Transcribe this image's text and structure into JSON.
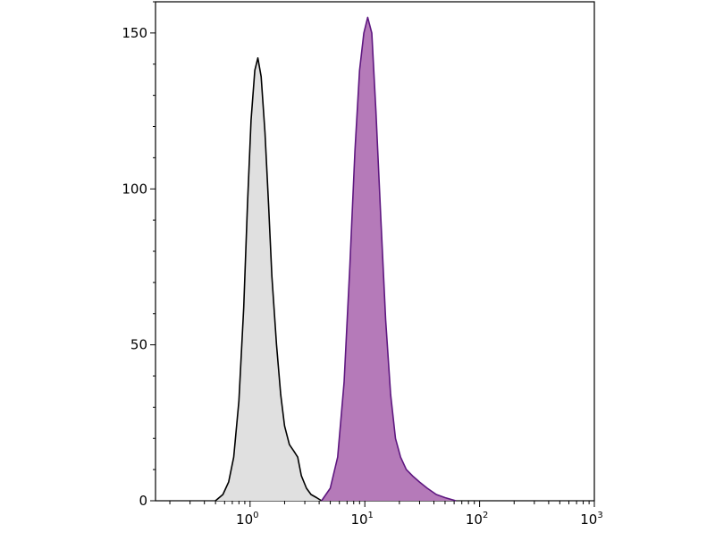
{
  "chart_data": {
    "type": "area",
    "title": "",
    "xlabel": "",
    "ylabel": "",
    "x_scale": "log",
    "xlim": [
      0.15,
      1000
    ],
    "ylim": [
      0,
      160
    ],
    "grid": false,
    "y_ticks": [
      {
        "value": 0,
        "label": "0"
      },
      {
        "value": 50,
        "label": "50"
      },
      {
        "value": 100,
        "label": "100"
      },
      {
        "value": 150,
        "label": "150"
      }
    ],
    "x_ticks": [
      {
        "value": 1,
        "base": "10",
        "exp": "0"
      },
      {
        "value": 10,
        "base": "10",
        "exp": "1"
      },
      {
        "value": 100,
        "base": "10",
        "exp": "2"
      },
      {
        "value": 1000,
        "base": "10",
        "exp": "3"
      }
    ],
    "series": [
      {
        "fill": "#e0e0e0",
        "stroke": "#000000",
        "points": [
          [
            0.5,
            0
          ],
          [
            0.58,
            2
          ],
          [
            0.65,
            6
          ],
          [
            0.72,
            14
          ],
          [
            0.8,
            32
          ],
          [
            0.88,
            62
          ],
          [
            0.95,
            95
          ],
          [
            1.02,
            122
          ],
          [
            1.1,
            138
          ],
          [
            1.17,
            142
          ],
          [
            1.25,
            136
          ],
          [
            1.35,
            118
          ],
          [
            1.45,
            95
          ],
          [
            1.55,
            72
          ],
          [
            1.7,
            50
          ],
          [
            1.85,
            34
          ],
          [
            2.0,
            24
          ],
          [
            2.2,
            18
          ],
          [
            2.4,
            16
          ],
          [
            2.6,
            14
          ],
          [
            2.8,
            8
          ],
          [
            3.1,
            4
          ],
          [
            3.4,
            2
          ],
          [
            3.8,
            1
          ],
          [
            4.2,
            0
          ]
        ]
      },
      {
        "fill": "#b57ab9",
        "stroke": "#5e1780",
        "points": [
          [
            4.2,
            0
          ],
          [
            5.0,
            4
          ],
          [
            5.8,
            14
          ],
          [
            6.6,
            38
          ],
          [
            7.4,
            75
          ],
          [
            8.2,
            112
          ],
          [
            9.0,
            138
          ],
          [
            9.8,
            150
          ],
          [
            10.6,
            155
          ],
          [
            11.5,
            150
          ],
          [
            12.5,
            125
          ],
          [
            13.8,
            90
          ],
          [
            15.2,
            58
          ],
          [
            16.8,
            34
          ],
          [
            18.5,
            20
          ],
          [
            20.5,
            14
          ],
          [
            23,
            10
          ],
          [
            26,
            8
          ],
          [
            30,
            6
          ],
          [
            35,
            4
          ],
          [
            42,
            2
          ],
          [
            50,
            1
          ],
          [
            62,
            0
          ]
        ]
      }
    ]
  }
}
